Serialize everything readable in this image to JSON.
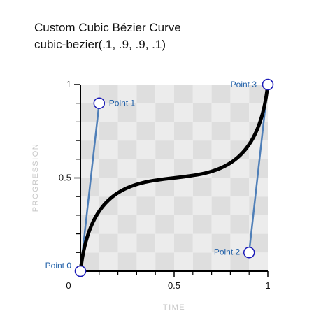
{
  "title": {
    "line1": "Custom Cubic Bézier Curve",
    "line2": "cubic-bezier(.1, .9, .9, .1)"
  },
  "chart_data": {
    "type": "line",
    "curve_type": "cubic-bezier",
    "control_points": [
      {
        "label": "Point 0",
        "x": 0,
        "y": 0
      },
      {
        "label": "Point 1",
        "x": 0.1,
        "y": 0.9
      },
      {
        "label": "Point 2",
        "x": 0.9,
        "y": 0.1
      },
      {
        "label": "Point 3",
        "x": 1,
        "y": 1
      }
    ],
    "xlabel": "TIME",
    "ylabel": "PROGRESSION",
    "xlim": [
      0,
      1
    ],
    "ylim": [
      0,
      1
    ],
    "x_tick_labels": [
      {
        "value": 0,
        "label": "0"
      },
      {
        "value": 0.5,
        "label": "0.5"
      },
      {
        "value": 1,
        "label": "1"
      }
    ],
    "y_tick_labels": [
      {
        "value": 0.5,
        "label": "0.5"
      },
      {
        "value": 1,
        "label": "1"
      }
    ],
    "minor_ticks": [
      0.1,
      0.2,
      0.3,
      0.4,
      0.6,
      0.7,
      0.8,
      0.9
    ],
    "grid": "checkerboard",
    "colors": {
      "curve": "#000000",
      "handles": "#4f7fb8",
      "point_stroke": "#1a1ab8",
      "point_fill": "#ffffff",
      "point_label": "#1f5fa8",
      "checker_light": "#ececec",
      "checker_dark": "#dedede"
    }
  }
}
